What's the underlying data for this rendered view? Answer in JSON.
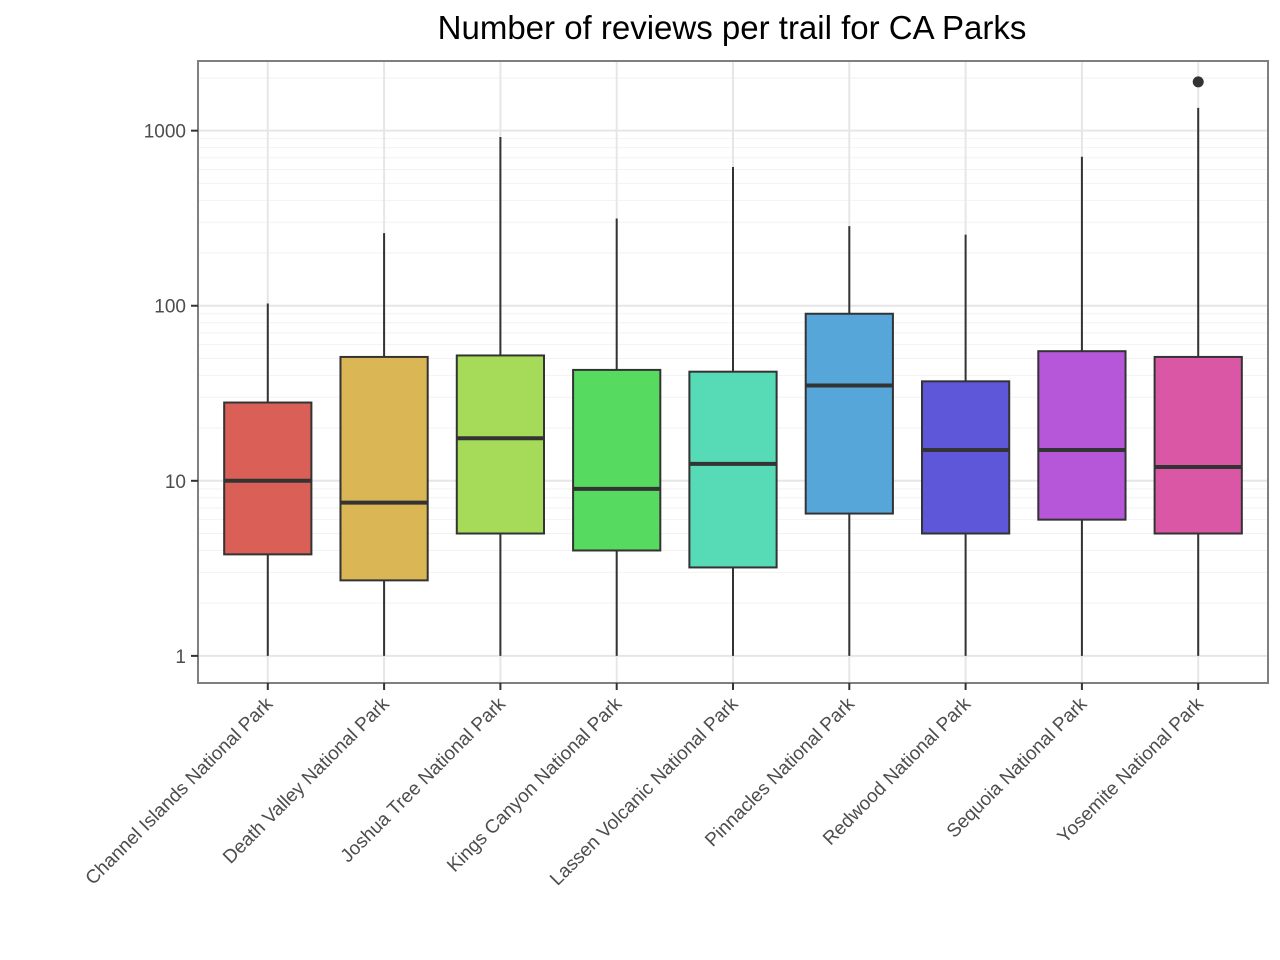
{
  "chart_data": {
    "type": "boxplot",
    "title": "Number of reviews per trail for CA Parks",
    "xlabel": "",
    "ylabel": "",
    "y_scale": "log10",
    "ylim": [
      0.7,
      2500
    ],
    "y_ticks": [
      1,
      10,
      100,
      1000
    ],
    "y_tick_labels": [
      "1",
      "10",
      "100",
      "1000"
    ],
    "grid": true,
    "legend": "none",
    "categories": [
      "Channel Islands National Park",
      "Death Valley National Park",
      "Joshua Tree National Park",
      "Kings Canyon National Park",
      "Lassen Volcanic National Park",
      "Pinnacles National Park",
      "Redwood National Park",
      "Sequoia National Park",
      "Yosemite National Park"
    ],
    "colors": [
      "#D95F57",
      "#DAB655",
      "#A6DA59",
      "#57DA60",
      "#57DAB6",
      "#57A6DA",
      "#5F57DA",
      "#B657DA",
      "#DA57A6"
    ],
    "boxes": [
      {
        "min": 1,
        "q1": 3.8,
        "median": 10,
        "q3": 28,
        "max": 103,
        "outliers": []
      },
      {
        "min": 1,
        "q1": 2.7,
        "median": 7.5,
        "q3": 51,
        "max": 260,
        "outliers": []
      },
      {
        "min": 1,
        "q1": 5,
        "median": 17.5,
        "q3": 52,
        "max": 920,
        "outliers": []
      },
      {
        "min": 1,
        "q1": 4,
        "median": 9,
        "q3": 43,
        "max": 315,
        "outliers": []
      },
      {
        "min": 1,
        "q1": 3.2,
        "median": 12.5,
        "q3": 42,
        "max": 620,
        "outliers": []
      },
      {
        "min": 1,
        "q1": 6.5,
        "median": 35,
        "q3": 90,
        "max": 285,
        "outliers": []
      },
      {
        "min": 1,
        "q1": 5,
        "median": 15,
        "q3": 37,
        "max": 255,
        "outliers": []
      },
      {
        "min": 1,
        "q1": 6,
        "median": 15,
        "q3": 55,
        "max": 710,
        "outliers": []
      },
      {
        "min": 1,
        "q1": 5,
        "median": 12,
        "q3": 51,
        "max": 1350,
        "outliers": [
          1900
        ]
      }
    ]
  }
}
